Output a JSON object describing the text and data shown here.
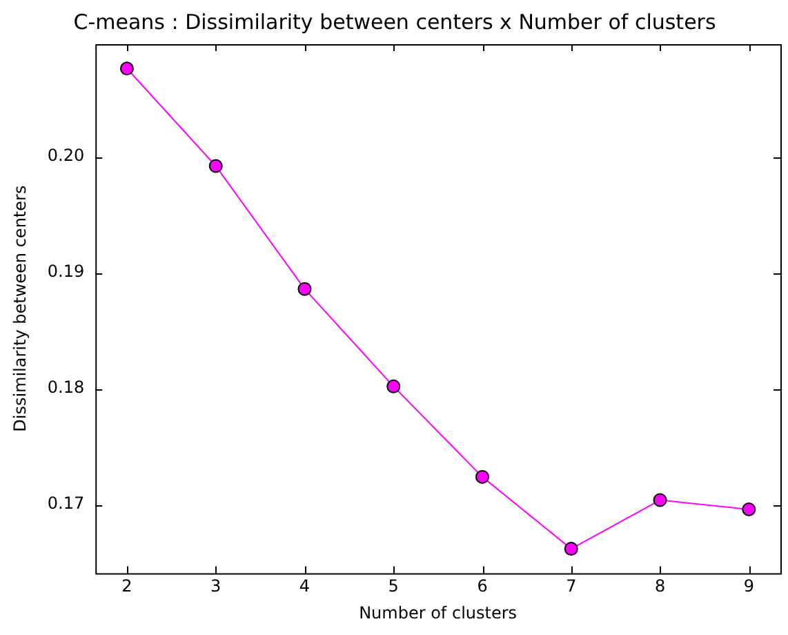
{
  "chart_data": {
    "type": "line",
    "title": "C-means : Dissimilarity between centers x Number of clusters",
    "xlabel": "Number of clusters",
    "ylabel": "Dissimilarity between centers",
    "x": [
      2,
      3,
      4,
      5,
      6,
      7,
      8,
      9
    ],
    "series": [
      {
        "color": "#ff00ff",
        "values": [
          0.2076,
          0.1992,
          0.1886,
          0.1802,
          0.1724,
          0.1662,
          0.1704,
          0.1696
        ]
      }
    ],
    "xlim": [
      1.645,
      9.355
    ],
    "xticks": [
      2,
      3,
      4,
      5,
      6,
      7,
      8,
      9
    ],
    "ylim": [
      0.1641,
      0.2097
    ],
    "yticks": [
      {
        "value": 0.17,
        "label": "0.17"
      },
      {
        "value": 0.18,
        "label": "0.18"
      },
      {
        "value": 0.19,
        "label": "0.19"
      },
      {
        "value": 0.2,
        "label": "0.20"
      }
    ],
    "marker": "circle",
    "line_style": "solid",
    "grid": false,
    "legend": false
  }
}
